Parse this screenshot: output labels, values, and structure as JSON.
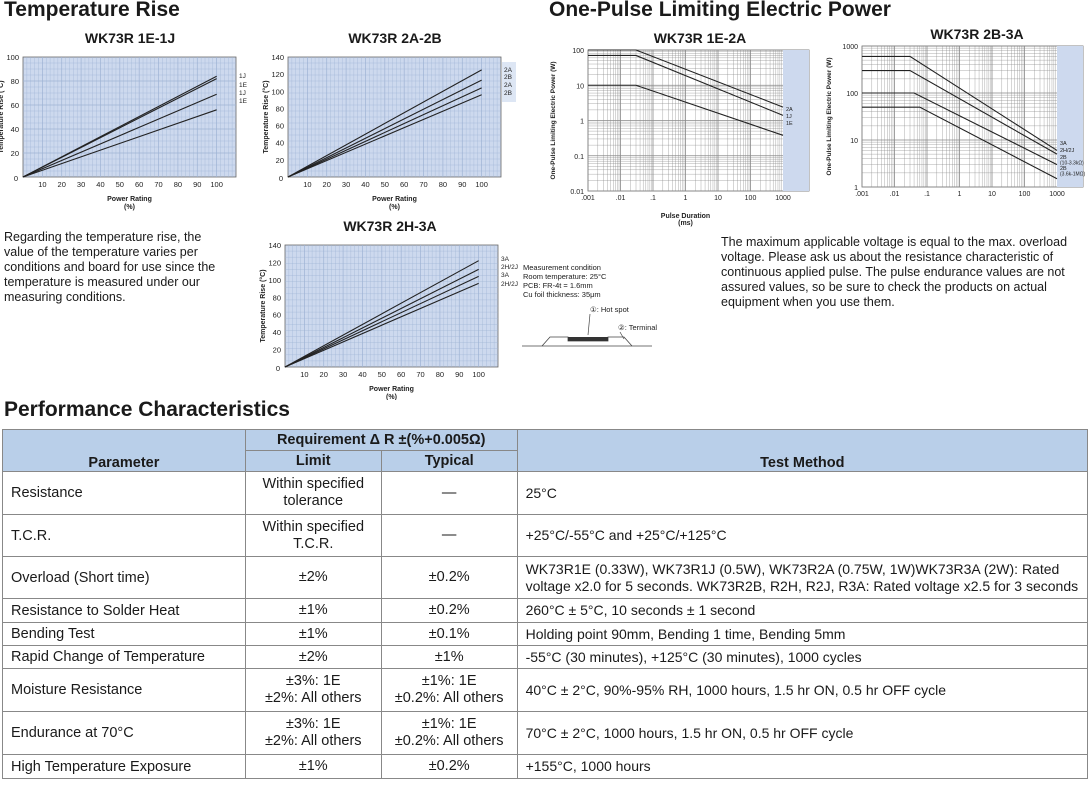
{
  "sections": {
    "temp_rise": "Temperature Rise",
    "pulse": "One-Pulse Limiting Electric Power",
    "perf": "Performance Characteristics"
  },
  "temp_note": "Regarding the temperature rise, the value of the temperature varies per conditions and board for use since the temperature is measured under our measuring conditions.",
  "pulse_note": "The maximum applicable voltage is equal to the max. overload voltage. Please ask us about the resistance characteristic of continuous applied pulse. The pulse endurance values are not assured values, so be sure to check the products on actual equipment when you use them.",
  "measurement": {
    "lines": [
      "Measurement condition",
      "Room temperature: 25°C",
      "PCB: FR-4t = 1.6mm",
      "Cu foil thickness: 35μm"
    ],
    "hot_spot": "①: Hot spot",
    "terminal": "②: Terminal"
  },
  "chart_data": [
    {
      "type": "line",
      "title": "WK73R 1E-1J",
      "xlabel": "Power Rating (%)",
      "ylabel": "Temperature Rise (°C)",
      "xlim": [
        0,
        110
      ],
      "ylim": [
        0,
        100
      ],
      "x_ticks": [
        10,
        20,
        30,
        40,
        50,
        60,
        70,
        80,
        90,
        100
      ],
      "y_ticks": [
        0,
        20,
        40,
        60,
        80,
        100
      ],
      "grid": true,
      "series": [
        {
          "name": "1J",
          "x": [
            0,
            100
          ],
          "y": [
            0,
            84
          ]
        },
        {
          "name": "1E",
          "x": [
            0,
            100
          ],
          "y": [
            0,
            82
          ]
        },
        {
          "name": "1J",
          "x": [
            0,
            100
          ],
          "y": [
            0,
            69
          ]
        },
        {
          "name": "1E",
          "x": [
            0,
            100
          ],
          "y": [
            0,
            56
          ]
        }
      ]
    },
    {
      "type": "line",
      "title": "WK73R 2A-2B",
      "xlabel": "Power Rating (%)",
      "ylabel": "Temperature Rise (°C)",
      "xlim": [
        0,
        110
      ],
      "ylim": [
        0,
        140
      ],
      "x_ticks": [
        10,
        20,
        30,
        40,
        50,
        60,
        70,
        80,
        90,
        100
      ],
      "y_ticks": [
        0,
        20,
        40,
        60,
        80,
        100,
        120,
        140
      ],
      "grid": true,
      "series": [
        {
          "name": "2A",
          "x": [
            0,
            100
          ],
          "y": [
            0,
            125
          ]
        },
        {
          "name": "2B",
          "x": [
            0,
            100
          ],
          "y": [
            0,
            113
          ]
        },
        {
          "name": "2A",
          "x": [
            0,
            100
          ],
          "y": [
            0,
            104
          ]
        },
        {
          "name": "2B",
          "x": [
            0,
            100
          ],
          "y": [
            0,
            96
          ]
        }
      ]
    },
    {
      "type": "line",
      "title": "WK73R 2H-3A",
      "xlabel": "Power Rating (%)",
      "ylabel": "Temperature Rise (°C)",
      "xlim": [
        0,
        110
      ],
      "ylim": [
        0,
        140
      ],
      "x_ticks": [
        10,
        20,
        30,
        40,
        50,
        60,
        70,
        80,
        90,
        100
      ],
      "y_ticks": [
        0,
        20,
        40,
        60,
        80,
        100,
        120,
        140
      ],
      "grid": true,
      "series": [
        {
          "name": "3A",
          "x": [
            0,
            100
          ],
          "y": [
            0,
            122
          ]
        },
        {
          "name": "2H/2J",
          "x": [
            0,
            100
          ],
          "y": [
            0,
            112
          ]
        },
        {
          "name": "3A",
          "x": [
            0,
            100
          ],
          "y": [
            0,
            104
          ]
        },
        {
          "name": "2H/2J",
          "x": [
            0,
            100
          ],
          "y": [
            0,
            96
          ]
        }
      ]
    },
    {
      "type": "line",
      "title": "WK73R 1E-2A",
      "xlabel": "Pulse Duration (ms)",
      "ylabel": "One-Pulse Limiting Electric Power (W)",
      "log_x": true,
      "log_y": true,
      "xlim": [
        0.001,
        1000
      ],
      "ylim": [
        0.01,
        100
      ],
      "x_tick_labels": [
        ".001",
        ".01",
        ".1",
        "1",
        "10",
        "100",
        "1000"
      ],
      "y_tick_labels": [
        "100",
        "10",
        "1",
        "0.1",
        "0.01"
      ],
      "grid": true,
      "series": [
        {
          "name": "2A",
          "x": [
            0.001,
            0.03,
            1000
          ],
          "y": [
            100,
            100,
            2.4
          ]
        },
        {
          "name": "1J",
          "x": [
            0.001,
            0.03,
            1000
          ],
          "y": [
            70,
            70,
            1.4
          ]
        },
        {
          "name": "1E",
          "x": [
            0.001,
            0.03,
            1000
          ],
          "y": [
            10,
            10,
            0.38
          ]
        }
      ]
    },
    {
      "type": "line",
      "title": "WK73R 2B-3A",
      "xlabel": "",
      "ylabel": "One-Pulse Limiting Electric Power (W)",
      "log_x": true,
      "log_y": true,
      "xlim": [
        0.001,
        1000
      ],
      "ylim": [
        1,
        1000
      ],
      "x_tick_labels": [
        ".001",
        ".01",
        ".1",
        "1",
        "10",
        "100",
        "1000"
      ],
      "y_tick_labels": [
        "1000",
        "100",
        "10",
        "1"
      ],
      "grid": true,
      "series": [
        {
          "name": "3A",
          "x": [
            0.001,
            0.03,
            1000
          ],
          "y": [
            600,
            600,
            6
          ]
        },
        {
          "name": "2H/2J",
          "x": [
            0.001,
            0.03,
            1000
          ],
          "y": [
            300,
            300,
            5
          ]
        },
        {
          "name": "2B (10-3.3kΩ)",
          "x": [
            0.001,
            0.04,
            1000
          ],
          "y": [
            100,
            100,
            3
          ]
        },
        {
          "name": "2B (3.6k-1MΩ)",
          "x": [
            0.001,
            0.06,
            1000
          ],
          "y": [
            50,
            50,
            1.5
          ]
        }
      ]
    }
  ],
  "table": {
    "headers": {
      "parameter": "Parameter",
      "requirement": "Requirement Δ R ±(%+0.005Ω)",
      "limit": "Limit",
      "typical": "Typical",
      "test_method": "Test Method"
    },
    "rows": [
      {
        "parameter": "Resistance",
        "limit": [
          "Within specified",
          "tolerance"
        ],
        "typical": [
          "—"
        ],
        "test": [
          "25°C"
        ]
      },
      {
        "parameter": "T.C.R.",
        "limit": [
          "Within specified",
          "T.C.R."
        ],
        "typical": [
          "—"
        ],
        "test": [
          "+25°C/-55°C and +25°C/+125°C"
        ]
      },
      {
        "parameter": "Overload (Short time)",
        "limit": [
          "±2%"
        ],
        "typical": [
          "±0.2%"
        ],
        "test": [
          "WK73R1E (0.33W), WK73R1J (0.5W), WK73R2A (0.75W, 1W)WK73R3A (2W): Rated",
          "voltage x2.0 for 5 seconds. WK73R2B, R2H, R2J, R3A: Rated voltage x2.5 for 3 seconds"
        ]
      },
      {
        "parameter": "Resistance to Solder Heat",
        "limit": [
          "±1%"
        ],
        "typical": [
          "±0.2%"
        ],
        "test": [
          "260°C ± 5°C, 10 seconds ± 1 second"
        ]
      },
      {
        "parameter": "Bending Test",
        "limit": [
          "±1%"
        ],
        "typical": [
          "±0.1%"
        ],
        "test": [
          "Holding point 90mm, Bending 1 time, Bending 5mm"
        ]
      },
      {
        "parameter": "Rapid Change of Temperature",
        "limit": [
          "±2%"
        ],
        "typical": [
          "±1%"
        ],
        "test": [
          "-55°C (30 minutes), +125°C (30 minutes), 1000 cycles"
        ]
      },
      {
        "parameter": "Moisture Resistance",
        "limit": [
          "±3%: 1E",
          "±2%: All others"
        ],
        "typical": [
          "±1%: 1E",
          "±0.2%: All others"
        ],
        "test": [
          "40°C ± 2°C, 90%-95% RH, 1000 hours, 1.5 hr ON, 0.5 hr OFF cycle"
        ]
      },
      {
        "parameter": "Endurance at 70°C",
        "limit": [
          "±3%: 1E",
          "±2%: All others"
        ],
        "typical": [
          "±1%: 1E",
          "±0.2%: All others"
        ],
        "test": [
          "70°C ± 2°C, 1000 hours, 1.5 hr ON, 0.5 hr OFF cycle"
        ]
      },
      {
        "parameter": "High Temperature Exposure",
        "limit": [
          "±1%"
        ],
        "typical": [
          "±0.2%"
        ],
        "test": [
          "+155°C, 1000 hours"
        ]
      }
    ]
  }
}
